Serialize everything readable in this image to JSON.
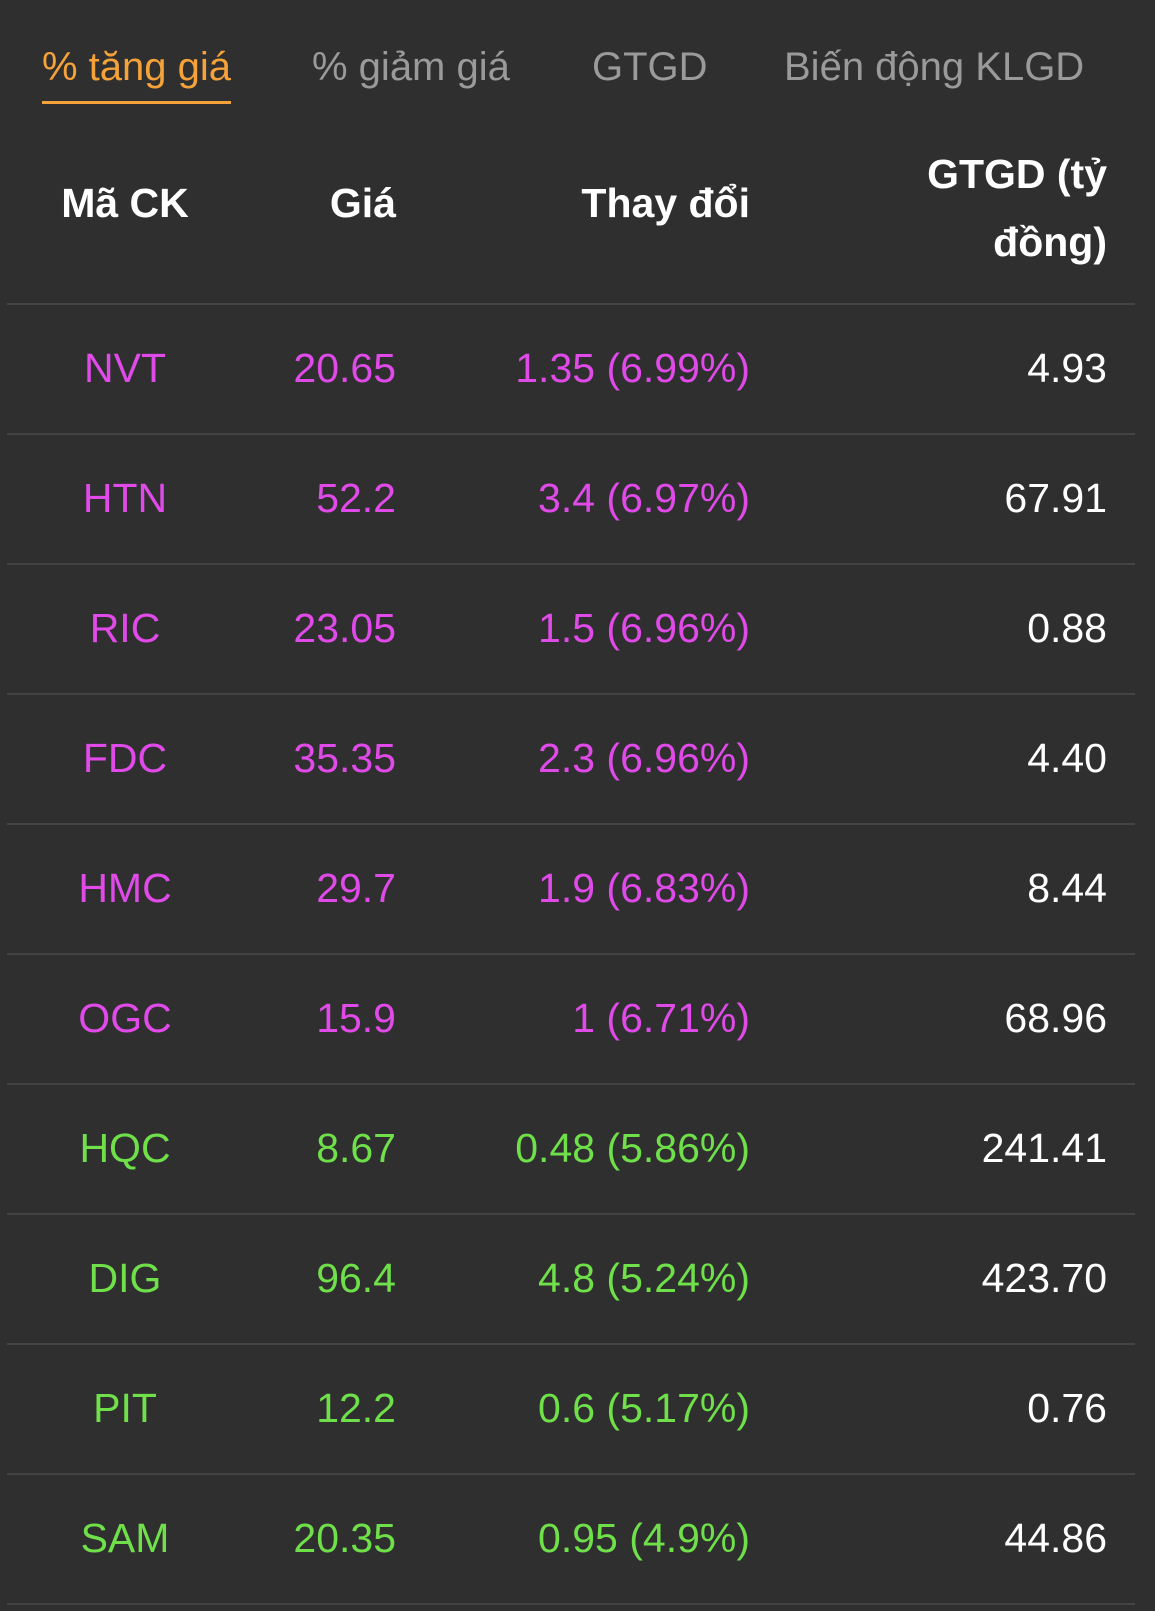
{
  "tabs": [
    "% tăng giá",
    "% giảm giá",
    "GTGD",
    "Biến động KLGD"
  ],
  "active_tab": 0,
  "active_color": "#f5a23a",
  "table": {
    "headers": [
      "Mã CK",
      "Giá",
      "Thay đổi",
      "GTGD (tỷ đồng)"
    ],
    "rows": [
      {
        "color": "#e04ae8",
        "cells": [
          "NVT",
          "20.65",
          "1.35 (6.99%)",
          "4.93"
        ]
      },
      {
        "color": "#e04ae8",
        "cells": [
          "HTN",
          "52.2",
          "3.4 (6.97%)",
          "67.91"
        ]
      },
      {
        "color": "#e04ae8",
        "cells": [
          "RIC",
          "23.05",
          "1.5 (6.96%)",
          "0.88"
        ]
      },
      {
        "color": "#e04ae8",
        "cells": [
          "FDC",
          "35.35",
          "2.3 (6.96%)",
          "4.40"
        ]
      },
      {
        "color": "#e04ae8",
        "cells": [
          "HMC",
          "29.7",
          "1.9 (6.83%)",
          "8.44"
        ]
      },
      {
        "color": "#e04ae8",
        "cells": [
          "OGC",
          "15.9",
          "1 (6.71%)",
          "68.96"
        ]
      },
      {
        "color": "#6fe04a",
        "cells": [
          "HQC",
          "8.67",
          "0.48 (5.86%)",
          "241.41"
        ]
      },
      {
        "color": "#6fe04a",
        "cells": [
          "DIG",
          "96.4",
          "4.8 (5.24%)",
          "423.70"
        ]
      },
      {
        "color": "#6fe04a",
        "cells": [
          "PIT",
          "12.2",
          "0.6 (5.17%)",
          "0.76"
        ]
      },
      {
        "color": "#6fe04a",
        "cells": [
          "SAM",
          "20.35",
          "0.95 (4.9%)",
          "44.86"
        ]
      }
    ]
  }
}
